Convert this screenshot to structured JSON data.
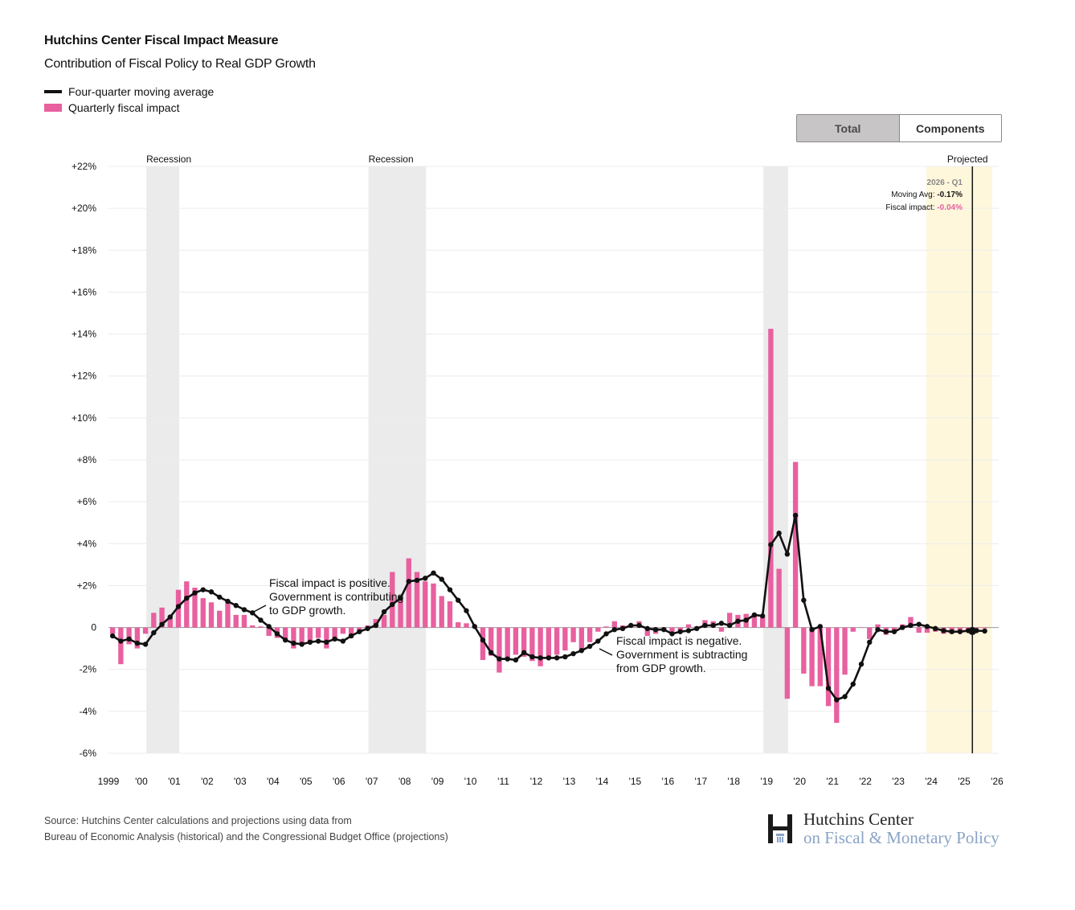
{
  "header": {
    "title": "Hutchins Center Fiscal Impact Measure",
    "subtitle": "Contribution of Fiscal Policy to Real GDP Growth"
  },
  "legend": {
    "line_label": "Four-quarter moving average",
    "bar_label": "Quarterly fiscal impact"
  },
  "toggle": {
    "total_label": "Total",
    "components_label": "Components"
  },
  "colors": {
    "bar": "#e8609f",
    "line": "#111111",
    "recession": "#ebebeb",
    "projected": "#fff7dc",
    "tooltip_fiscal": "#e8609f"
  },
  "tooltip": {
    "period": "2026 - Q1",
    "moving_avg_label": "Moving Avg:",
    "moving_avg_value": "-0.17%",
    "fiscal_label": "Fiscal impact:",
    "fiscal_value": "-0.04%"
  },
  "annotations": {
    "positive": [
      "Fiscal impact is positive.",
      "Government is contributing",
      "to GDP growth."
    ],
    "negative": [
      "Fiscal impact is negative.",
      "Government is subtracting",
      "from GDP growth."
    ]
  },
  "footer": {
    "line1": "Source: Hutchins Center calculations and projections using data from",
    "line2": "Bureau of Economic Analysis (historical) and the Congressional Budget Office (projections)"
  },
  "logo": {
    "line1": "Hutchins Center",
    "line2": "on Fiscal & Monetary Policy"
  },
  "chart_data": {
    "type": "bar",
    "x_start": "1999-Q1",
    "frequency": "quarterly",
    "xlim": [
      1999,
      2026
    ],
    "ylim": [
      -6,
      22
    ],
    "y_ticks": [
      22,
      20,
      18,
      16,
      14,
      12,
      10,
      8,
      6,
      4,
      2,
      0,
      -2,
      -4,
      -6
    ],
    "y_tick_labels": [
      "+22%",
      "+20%",
      "+18%",
      "+16%",
      "+14%",
      "+12%",
      "+10%",
      "+8%",
      "+6%",
      "+4%",
      "+2%",
      "0",
      "-2%",
      "-4%",
      "-6%"
    ],
    "x_ticks": [
      1999,
      2000,
      2001,
      2002,
      2003,
      2004,
      2005,
      2006,
      2007,
      2008,
      2009,
      2010,
      2011,
      2012,
      2013,
      2014,
      2015,
      2016,
      2017,
      2018,
      2019,
      2020,
      2021,
      2022,
      2023,
      2024,
      2025,
      2026
    ],
    "x_tick_labels": [
      "1999",
      "'00",
      "'01",
      "'02",
      "'03",
      "'04",
      "'05",
      "'06",
      "'07",
      "'08",
      "'09",
      "'10",
      "'11",
      "'12",
      "'13",
      "'14",
      "'15",
      "'16",
      "'17",
      "'18",
      "'19",
      "'20",
      "'21",
      "'22",
      "'23",
      "'24",
      "'25",
      "'26"
    ],
    "shaded_regions": [
      {
        "label": "Recession",
        "start": 2000.15,
        "end": 2001.15
      },
      {
        "label": "Recession",
        "start": 2006.9,
        "end": 2008.65
      },
      {
        "label": "",
        "start": 2018.9,
        "end": 2019.65
      },
      {
        "label": "Projected",
        "start": 2023.85,
        "end": 2025.85
      }
    ],
    "cursor_x": 2025.25,
    "series": [
      {
        "name": "Quarterly fiscal impact",
        "type": "bar",
        "values": [
          -0.3,
          -1.75,
          -0.8,
          -1.0,
          -0.3,
          0.7,
          0.95,
          0.45,
          1.8,
          2.2,
          1.9,
          1.4,
          1.2,
          0.8,
          1.3,
          0.6,
          0.6,
          0.1,
          0.05,
          -0.4,
          -0.5,
          -0.6,
          -1.0,
          -0.75,
          -0.7,
          -0.5,
          -1.0,
          -0.6,
          -0.3,
          -0.5,
          -0.2,
          0.1,
          0.4,
          0.6,
          2.65,
          1.3,
          3.3,
          2.65,
          2.2,
          2.1,
          1.5,
          1.25,
          0.25,
          0.2,
          0.1,
          -1.55,
          -1.35,
          -2.15,
          -1.5,
          -1.3,
          -1.4,
          -1.6,
          -1.85,
          -1.4,
          -1.3,
          -1.1,
          -0.7,
          -1.1,
          -0.7,
          -0.2,
          0.05,
          0.3,
          0.1,
          0.05,
          0.3,
          -0.4,
          -0.3,
          -0.1,
          -0.2,
          -0.2,
          0.15,
          0.05,
          0.35,
          0.3,
          -0.2,
          0.7,
          0.6,
          0.65,
          0.55,
          0.5,
          14.25,
          2.8,
          -3.4,
          7.9,
          -2.2,
          -2.8,
          -2.8,
          -3.75,
          -4.55,
          -2.25,
          -0.2,
          0.0,
          -0.55,
          0.15,
          -0.35,
          -0.2,
          0.15,
          0.5,
          -0.25,
          -0.25,
          -0.2,
          -0.3,
          -0.3,
          -0.2,
          -0.1,
          -0.05,
          -0.04
        ]
      },
      {
        "name": "Four-quarter moving average",
        "type": "line",
        "values": [
          -0.4,
          -0.65,
          -0.55,
          -0.75,
          -0.8,
          -0.25,
          0.15,
          0.5,
          1.0,
          1.4,
          1.65,
          1.8,
          1.7,
          1.45,
          1.25,
          1.05,
          0.85,
          0.7,
          0.35,
          0.05,
          -0.3,
          -0.6,
          -0.75,
          -0.8,
          -0.7,
          -0.65,
          -0.7,
          -0.55,
          -0.65,
          -0.4,
          -0.2,
          -0.05,
          0.1,
          0.75,
          1.1,
          1.4,
          2.2,
          2.25,
          2.35,
          2.6,
          2.3,
          1.8,
          1.3,
          0.8,
          0.05,
          -0.6,
          -1.2,
          -1.5,
          -1.5,
          -1.55,
          -1.2,
          -1.4,
          -1.45,
          -1.45,
          -1.45,
          -1.4,
          -1.25,
          -1.1,
          -0.9,
          -0.65,
          -0.3,
          -0.1,
          -0.05,
          0.1,
          0.1,
          -0.05,
          -0.1,
          -0.1,
          -0.3,
          -0.2,
          -0.15,
          -0.05,
          0.1,
          0.1,
          0.2,
          0.1,
          0.3,
          0.35,
          0.6,
          0.55,
          3.95,
          4.5,
          3.5,
          5.35,
          1.3,
          -0.1,
          0.05,
          -2.9,
          -3.45,
          -3.3,
          -2.7,
          -1.75,
          -0.7,
          -0.1,
          -0.2,
          -0.2,
          0.0,
          0.1,
          0.15,
          0.05,
          -0.05,
          -0.15,
          -0.2,
          -0.2,
          -0.15,
          -0.15,
          -0.17
        ]
      }
    ]
  }
}
